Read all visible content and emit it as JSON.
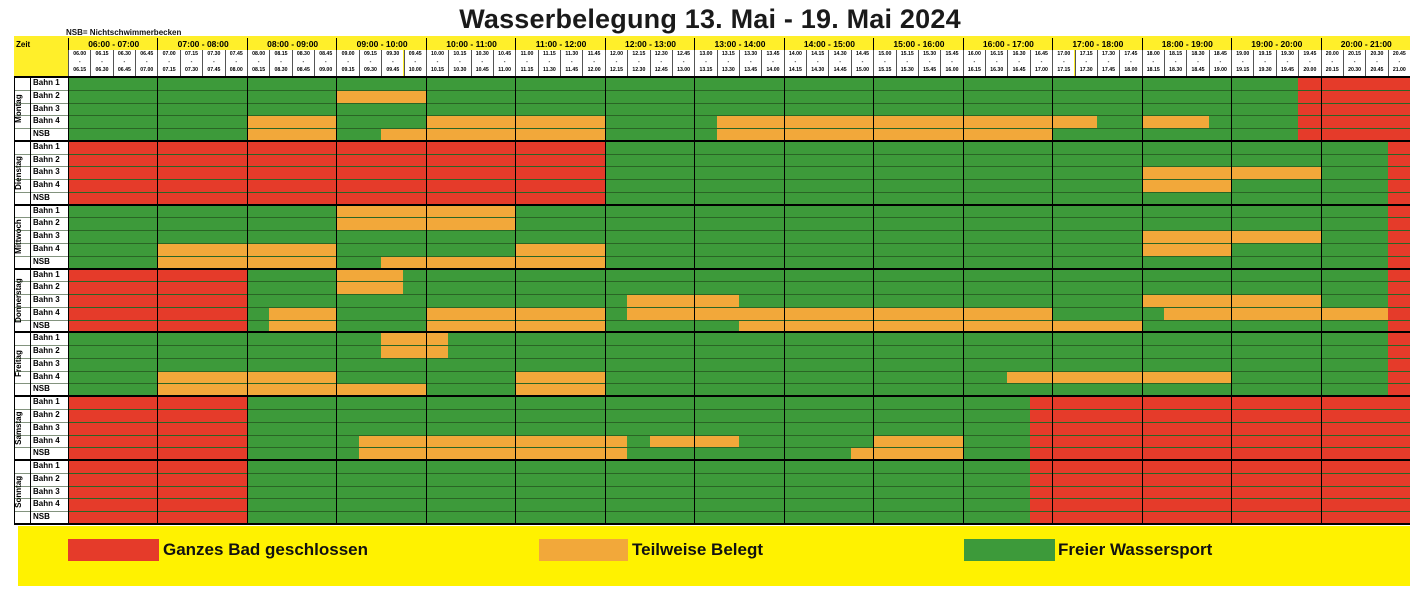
{
  "title": "Wasserbelegung 13. Mai - 19. Mai 2024",
  "nsb_note": "NSB= Nichtschwimmerbecken",
  "zeit_label": "Zeit",
  "hours": [
    "06:00 - 07:00",
    "07:00 - 08:00",
    "08:00 - 09:00",
    "09:00 - 10:00",
    "10:00 - 11:00",
    "11:00 - 12:00",
    "12:00 - 13:00",
    "13:00 - 14:00",
    "14:00 - 15:00",
    "15:00 - 16:00",
    "16:00 - 17:00",
    "17:00 - 18:00",
    "18:00 - 19:00",
    "19:00 - 20:00",
    "20:00 - 21:00"
  ],
  "slots": [
    [
      "06.00",
      "06.15"
    ],
    [
      "06.15",
      "06.30"
    ],
    [
      "06.30",
      "06.45"
    ],
    [
      "06.45",
      "07.00"
    ],
    [
      "07.00",
      "07.15"
    ],
    [
      "07.15",
      "07.30"
    ],
    [
      "07.30",
      "07.45"
    ],
    [
      "07.45",
      "08.00"
    ],
    [
      "08.00",
      "08.15"
    ],
    [
      "08.15",
      "08.30"
    ],
    [
      "08.30",
      "08.45"
    ],
    [
      "08.45",
      "09.00"
    ],
    [
      "09.00",
      "09.15"
    ],
    [
      "09.15",
      "09.30"
    ],
    [
      "09.30",
      "09.45"
    ],
    [
      "09.45",
      "10.00"
    ],
    [
      "10.00",
      "10.15"
    ],
    [
      "10.15",
      "10.30"
    ],
    [
      "10.30",
      "10.45"
    ],
    [
      "10.45",
      "11.00"
    ],
    [
      "11.00",
      "11.15"
    ],
    [
      "11.15",
      "11.30"
    ],
    [
      "11.30",
      "11.45"
    ],
    [
      "11.45",
      "12.00"
    ],
    [
      "12.00",
      "12.15"
    ],
    [
      "12.15",
      "12.30"
    ],
    [
      "12.30",
      "12.45"
    ],
    [
      "12.45",
      "13.00"
    ],
    [
      "13.00",
      "13.15"
    ],
    [
      "13.15",
      "13.30"
    ],
    [
      "13.30",
      "13.45"
    ],
    [
      "13.45",
      "14.00"
    ],
    [
      "14.00",
      "14.15"
    ],
    [
      "14.15",
      "14.30"
    ],
    [
      "14.30",
      "14.45"
    ],
    [
      "14.45",
      "15.00"
    ],
    [
      "15.00",
      "15.15"
    ],
    [
      "15.15",
      "15.30"
    ],
    [
      "15.30",
      "15.45"
    ],
    [
      "15.45",
      "16.00"
    ],
    [
      "16.00",
      "16.15"
    ],
    [
      "16.15",
      "16.30"
    ],
    [
      "16.30",
      "16.45"
    ],
    [
      "16.45",
      "17.00"
    ],
    [
      "17.00",
      "17.15"
    ],
    [
      "17.15",
      "17.30"
    ],
    [
      "17.30",
      "17.45"
    ],
    [
      "17.45",
      "18.00"
    ],
    [
      "18.00",
      "18.15"
    ],
    [
      "18.15",
      "18.30"
    ],
    [
      "18.30",
      "18.45"
    ],
    [
      "18.45",
      "19.00"
    ],
    [
      "19.00",
      "19.15"
    ],
    [
      "19.15",
      "19.30"
    ],
    [
      "19.30",
      "19.45"
    ],
    [
      "19.45",
      "20.00"
    ],
    [
      "20.00",
      "20.15"
    ],
    [
      "20.15",
      "20.30"
    ],
    [
      "20.30",
      "20.45"
    ],
    [
      "20.45",
      "21.00"
    ]
  ],
  "lanes": [
    "Bahn 1",
    "Bahn 2",
    "Bahn 3",
    "Bahn 4",
    "NSB"
  ],
  "colors": {
    "closed": "#e53b2a",
    "partial": "#f2a83a",
    "free": "#3d9a3a",
    "header": "#ffef2a",
    "legend_bg": "#fff200"
  },
  "days": [
    {
      "name": "Montag",
      "blocks": [
        {
          "lane": 1,
          "from": "09:00",
          "to": "10:00",
          "status": "partial"
        },
        {
          "lane": 3,
          "from": "08:00",
          "to": "09:00",
          "status": "partial"
        },
        {
          "lane": 3,
          "from": "10:00",
          "to": "12:00",
          "status": "partial"
        },
        {
          "lane": 3,
          "from": "13:15",
          "to": "17:30",
          "status": "partial"
        },
        {
          "lane": 3,
          "from": "18:00",
          "to": "18:45",
          "status": "partial"
        },
        {
          "lane": 4,
          "from": "08:00",
          "to": "09:00",
          "status": "partial"
        },
        {
          "lane": 4,
          "from": "09:30",
          "to": "12:00",
          "status": "partial"
        },
        {
          "lane": 4,
          "from": "13:15",
          "to": "17:00",
          "status": "partial"
        },
        {
          "lane": 0,
          "from": "19:45",
          "to": "21:00",
          "status": "closed"
        },
        {
          "lane": 1,
          "from": "19:45",
          "to": "21:00",
          "status": "closed"
        },
        {
          "lane": 2,
          "from": "19:45",
          "to": "21:00",
          "status": "closed"
        },
        {
          "lane": 3,
          "from": "19:45",
          "to": "21:00",
          "status": "closed"
        },
        {
          "lane": 4,
          "from": "19:45",
          "to": "21:00",
          "status": "closed"
        }
      ]
    },
    {
      "name": "Dienstag",
      "blocks": [
        {
          "lane": 0,
          "from": "06:00",
          "to": "12:00",
          "status": "closed"
        },
        {
          "lane": 1,
          "from": "06:00",
          "to": "12:00",
          "status": "closed"
        },
        {
          "lane": 2,
          "from": "06:00",
          "to": "12:00",
          "status": "closed"
        },
        {
          "lane": 3,
          "from": "06:00",
          "to": "12:00",
          "status": "closed"
        },
        {
          "lane": 4,
          "from": "06:00",
          "to": "12:00",
          "status": "closed"
        },
        {
          "lane": 2,
          "from": "18:00",
          "to": "20:00",
          "status": "partial"
        },
        {
          "lane": 3,
          "from": "18:00",
          "to": "19:00",
          "status": "partial"
        },
        {
          "lane": 0,
          "from": "20:45",
          "to": "21:00",
          "status": "closed"
        },
        {
          "lane": 1,
          "from": "20:45",
          "to": "21:00",
          "status": "closed"
        },
        {
          "lane": 2,
          "from": "20:45",
          "to": "21:00",
          "status": "closed"
        },
        {
          "lane": 3,
          "from": "20:45",
          "to": "21:00",
          "status": "closed"
        },
        {
          "lane": 4,
          "from": "20:45",
          "to": "21:00",
          "status": "closed"
        }
      ]
    },
    {
      "name": "Mittwoch",
      "blocks": [
        {
          "lane": 0,
          "from": "09:00",
          "to": "11:00",
          "status": "partial"
        },
        {
          "lane": 1,
          "from": "09:00",
          "to": "11:00",
          "status": "partial"
        },
        {
          "lane": 2,
          "from": "18:00",
          "to": "20:00",
          "status": "partial"
        },
        {
          "lane": 3,
          "from": "07:00",
          "to": "09:00",
          "status": "partial"
        },
        {
          "lane": 3,
          "from": "11:00",
          "to": "12:00",
          "status": "partial"
        },
        {
          "lane": 3,
          "from": "18:00",
          "to": "19:00",
          "status": "partial"
        },
        {
          "lane": 4,
          "from": "07:00",
          "to": "09:00",
          "status": "partial"
        },
        {
          "lane": 4,
          "from": "09:30",
          "to": "11:00",
          "status": "partial"
        },
        {
          "lane": 4,
          "from": "11:00",
          "to": "12:00",
          "status": "partial"
        },
        {
          "lane": 0,
          "from": "20:45",
          "to": "21:00",
          "status": "closed"
        },
        {
          "lane": 1,
          "from": "20:45",
          "to": "21:00",
          "status": "closed"
        },
        {
          "lane": 2,
          "from": "20:45",
          "to": "21:00",
          "status": "closed"
        },
        {
          "lane": 3,
          "from": "20:45",
          "to": "21:00",
          "status": "closed"
        },
        {
          "lane": 4,
          "from": "20:45",
          "to": "21:00",
          "status": "closed"
        }
      ]
    },
    {
      "name": "Donnerstag",
      "blocks": [
        {
          "lane": 0,
          "from": "06:00",
          "to": "08:00",
          "status": "closed"
        },
        {
          "lane": 1,
          "from": "06:00",
          "to": "08:00",
          "status": "closed"
        },
        {
          "lane": 2,
          "from": "06:00",
          "to": "08:00",
          "status": "closed"
        },
        {
          "lane": 3,
          "from": "06:00",
          "to": "08:00",
          "status": "closed"
        },
        {
          "lane": 4,
          "from": "06:00",
          "to": "08:00",
          "status": "closed"
        },
        {
          "lane": 0,
          "from": "09:00",
          "to": "09:45",
          "status": "partial"
        },
        {
          "lane": 1,
          "from": "09:00",
          "to": "09:45",
          "status": "partial"
        },
        {
          "lane": 2,
          "from": "12:15",
          "to": "13:30",
          "status": "partial"
        },
        {
          "lane": 2,
          "from": "18:00",
          "to": "20:00",
          "status": "partial"
        },
        {
          "lane": 3,
          "from": "08:15",
          "to": "09:00",
          "status": "partial"
        },
        {
          "lane": 3,
          "from": "10:00",
          "to": "12:00",
          "status": "partial"
        },
        {
          "lane": 3,
          "from": "12:15",
          "to": "17:00",
          "status": "partial"
        },
        {
          "lane": 3,
          "from": "18:15",
          "to": "20:45",
          "status": "partial"
        },
        {
          "lane": 4,
          "from": "08:15",
          "to": "09:00",
          "status": "partial"
        },
        {
          "lane": 4,
          "from": "10:00",
          "to": "12:00",
          "status": "partial"
        },
        {
          "lane": 4,
          "from": "13:30",
          "to": "18:00",
          "status": "partial"
        },
        {
          "lane": 0,
          "from": "20:45",
          "to": "21:00",
          "status": "closed"
        },
        {
          "lane": 1,
          "from": "20:45",
          "to": "21:00",
          "status": "closed"
        },
        {
          "lane": 2,
          "from": "20:45",
          "to": "21:00",
          "status": "closed"
        },
        {
          "lane": 3,
          "from": "20:45",
          "to": "21:00",
          "status": "closed"
        },
        {
          "lane": 4,
          "from": "20:45",
          "to": "21:00",
          "status": "closed"
        }
      ]
    },
    {
      "name": "Freitag",
      "blocks": [
        {
          "lane": 0,
          "from": "09:30",
          "to": "10:15",
          "status": "partial"
        },
        {
          "lane": 1,
          "from": "09:30",
          "to": "10:15",
          "status": "partial"
        },
        {
          "lane": 3,
          "from": "07:00",
          "to": "09:00",
          "status": "partial"
        },
        {
          "lane": 3,
          "from": "11:00",
          "to": "12:00",
          "status": "partial"
        },
        {
          "lane": 3,
          "from": "16:30",
          "to": "19:00",
          "status": "partial"
        },
        {
          "lane": 4,
          "from": "07:00",
          "to": "09:00",
          "status": "partial"
        },
        {
          "lane": 4,
          "from": "09:00",
          "to": "10:00",
          "status": "partial"
        },
        {
          "lane": 4,
          "from": "11:00",
          "to": "12:00",
          "status": "partial"
        },
        {
          "lane": 0,
          "from": "20:45",
          "to": "21:00",
          "status": "closed"
        },
        {
          "lane": 1,
          "from": "20:45",
          "to": "21:00",
          "status": "closed"
        },
        {
          "lane": 2,
          "from": "20:45",
          "to": "21:00",
          "status": "closed"
        },
        {
          "lane": 3,
          "from": "20:45",
          "to": "21:00",
          "status": "closed"
        },
        {
          "lane": 4,
          "from": "20:45",
          "to": "21:00",
          "status": "closed"
        }
      ]
    },
    {
      "name": "Samstag",
      "blocks": [
        {
          "lane": 0,
          "from": "06:00",
          "to": "08:00",
          "status": "closed"
        },
        {
          "lane": 1,
          "from": "06:00",
          "to": "08:00",
          "status": "closed"
        },
        {
          "lane": 2,
          "from": "06:00",
          "to": "08:00",
          "status": "closed"
        },
        {
          "lane": 3,
          "from": "06:00",
          "to": "08:00",
          "status": "closed"
        },
        {
          "lane": 4,
          "from": "06:00",
          "to": "08:00",
          "status": "closed"
        },
        {
          "lane": 3,
          "from": "09:15",
          "to": "12:15",
          "status": "partial"
        },
        {
          "lane": 3,
          "from": "12:30",
          "to": "13:30",
          "status": "partial"
        },
        {
          "lane": 3,
          "from": "15:00",
          "to": "16:00",
          "status": "partial"
        },
        {
          "lane": 4,
          "from": "09:15",
          "to": "12:15",
          "status": "partial"
        },
        {
          "lane": 4,
          "from": "14:45",
          "to": "16:00",
          "status": "partial"
        },
        {
          "lane": 0,
          "from": "16:45",
          "to": "21:00",
          "status": "closed"
        },
        {
          "lane": 1,
          "from": "16:45",
          "to": "21:00",
          "status": "closed"
        },
        {
          "lane": 2,
          "from": "16:45",
          "to": "21:00",
          "status": "closed"
        },
        {
          "lane": 3,
          "from": "16:45",
          "to": "21:00",
          "status": "closed"
        },
        {
          "lane": 4,
          "from": "16:45",
          "to": "21:00",
          "status": "closed"
        }
      ]
    },
    {
      "name": "Sonntag",
      "blocks": [
        {
          "lane": 0,
          "from": "06:00",
          "to": "08:00",
          "status": "closed"
        },
        {
          "lane": 1,
          "from": "06:00",
          "to": "08:00",
          "status": "closed"
        },
        {
          "lane": 2,
          "from": "06:00",
          "to": "08:00",
          "status": "closed"
        },
        {
          "lane": 3,
          "from": "06:00",
          "to": "08:00",
          "status": "closed"
        },
        {
          "lane": 4,
          "from": "06:00",
          "to": "08:00",
          "status": "closed"
        },
        {
          "lane": 0,
          "from": "16:45",
          "to": "21:00",
          "status": "closed"
        },
        {
          "lane": 1,
          "from": "16:45",
          "to": "21:00",
          "status": "closed"
        },
        {
          "lane": 2,
          "from": "16:45",
          "to": "21:00",
          "status": "closed"
        },
        {
          "lane": 3,
          "from": "16:45",
          "to": "21:00",
          "status": "closed"
        },
        {
          "lane": 4,
          "from": "16:45",
          "to": "21:00",
          "status": "closed"
        }
      ]
    }
  ],
  "legend": [
    {
      "status": "closed",
      "label": "Ganzes Bad geschlossen"
    },
    {
      "status": "partial",
      "label": "Teilweise Belegt"
    },
    {
      "status": "free",
      "label": "Freier Wassersport"
    }
  ]
}
